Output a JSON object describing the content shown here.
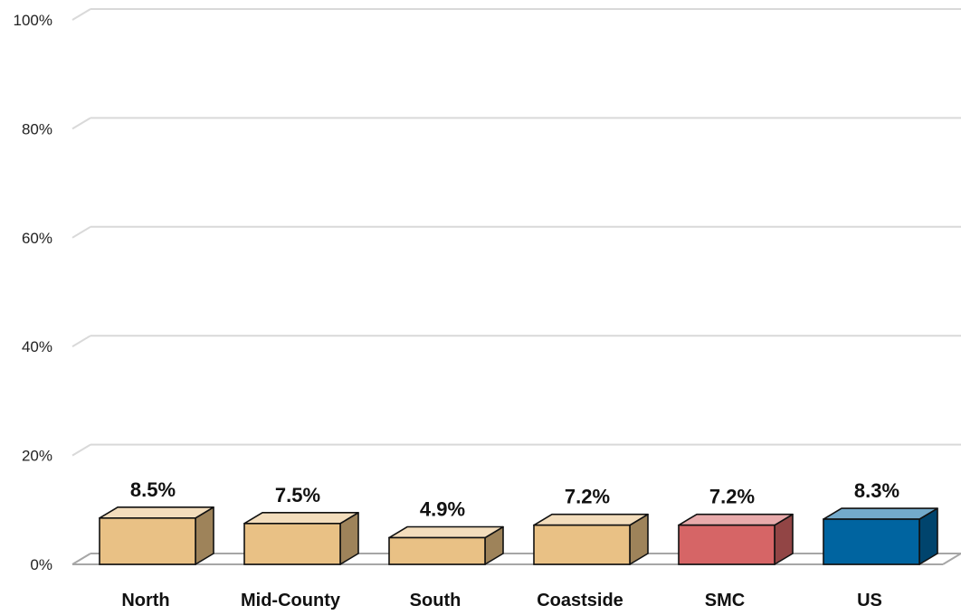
{
  "chart_data": {
    "type": "bar",
    "categories": [
      "North",
      "Mid-County",
      "South",
      "Coastside",
      "SMC",
      "US"
    ],
    "values": [
      8.5,
      7.5,
      4.9,
      7.2,
      7.2,
      8.3
    ],
    "data_labels": [
      "8.5%",
      "7.5%",
      "4.9%",
      "7.2%",
      "7.2%",
      "8.3%"
    ],
    "colors": [
      "#e9c185",
      "#e9c185",
      "#e9c185",
      "#e9c185",
      "#d66566",
      "#0064a0"
    ],
    "ylim": [
      0,
      100
    ],
    "yticks": [
      0,
      20,
      40,
      60,
      80,
      100
    ],
    "ytick_labels": [
      "0%",
      "20%",
      "40%",
      "60%",
      "80%",
      "100%"
    ],
    "grid": true,
    "style": "3d-bars"
  }
}
